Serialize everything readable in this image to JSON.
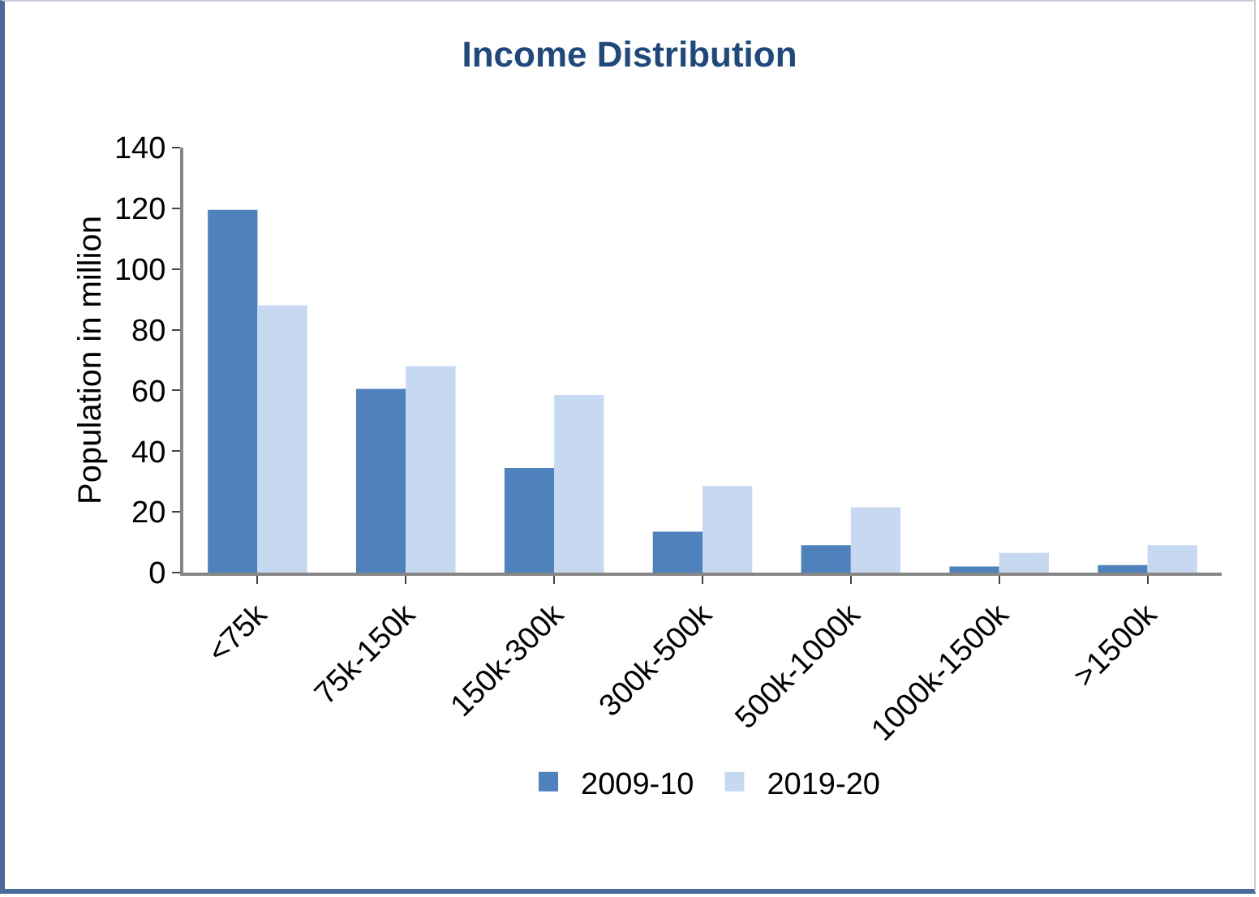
{
  "chart_data": {
    "type": "bar",
    "title": "Income Distribution",
    "ylabel": "Population in million",
    "categories": [
      "<75k",
      "75k-150k",
      "150k-300k",
      "300k-500k",
      "500k-1000k",
      "1000k-1500k",
      ">1500k"
    ],
    "series": [
      {
        "name": "2009-10",
        "color": "#4f81bd",
        "values": [
          119.5,
          60.5,
          34.5,
          13.5,
          9,
          2,
          2.5
        ]
      },
      {
        "name": "2019-20",
        "color": "#c6d9f1",
        "values": [
          88,
          68,
          58.5,
          28.5,
          21.5,
          6.5,
          9
        ]
      }
    ],
    "ylim": [
      0,
      140
    ],
    "yticks": [
      0,
      20,
      40,
      60,
      80,
      100,
      120,
      140
    ],
    "grid": false,
    "legend": "bottom"
  }
}
